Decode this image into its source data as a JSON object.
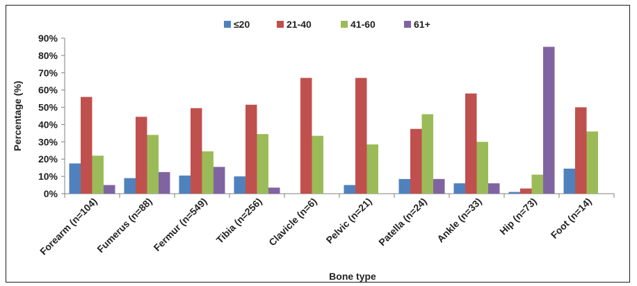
{
  "chart_data": {
    "type": "bar",
    "title": "",
    "xlabel": "Bone type",
    "ylabel": "Percentage (%)",
    "ylim": [
      0,
      90
    ],
    "y_ticks": [
      "0%",
      "10%",
      "20%",
      "30%",
      "40%",
      "50%",
      "60%",
      "70%",
      "80%",
      "90%"
    ],
    "grid": false,
    "legend_position": "top",
    "categories": [
      "Forearm (n=104)",
      "Fumerus (n=88)",
      "Fermur (n=549)",
      "Tibia (n=256)",
      "Clavicle  (n=6)",
      "Pelvic (n=21)",
      "Patella (n=24)",
      "Ankle (n=33)",
      "Hip (n=73)",
      "Foot (n=14)"
    ],
    "series": [
      {
        "name": "≤20",
        "color": "#4F81BD",
        "values": [
          17.5,
          9,
          10.5,
          10,
          0,
          5,
          8.5,
          6,
          1,
          14.5
        ]
      },
      {
        "name": "21-40",
        "color": "#C0504D",
        "values": [
          56,
          44.5,
          49.5,
          51.5,
          67,
          67,
          37.5,
          58,
          3,
          50
        ]
      },
      {
        "name": "41-60",
        "color": "#9BBB59",
        "values": [
          22,
          34,
          24.5,
          34.5,
          33.5,
          28.5,
          46,
          30,
          11,
          36
        ]
      },
      {
        "name": "61+",
        "color": "#8064A2",
        "values": [
          5,
          12.5,
          15.5,
          3.5,
          0,
          0,
          8.5,
          6,
          85,
          0
        ]
      }
    ]
  }
}
